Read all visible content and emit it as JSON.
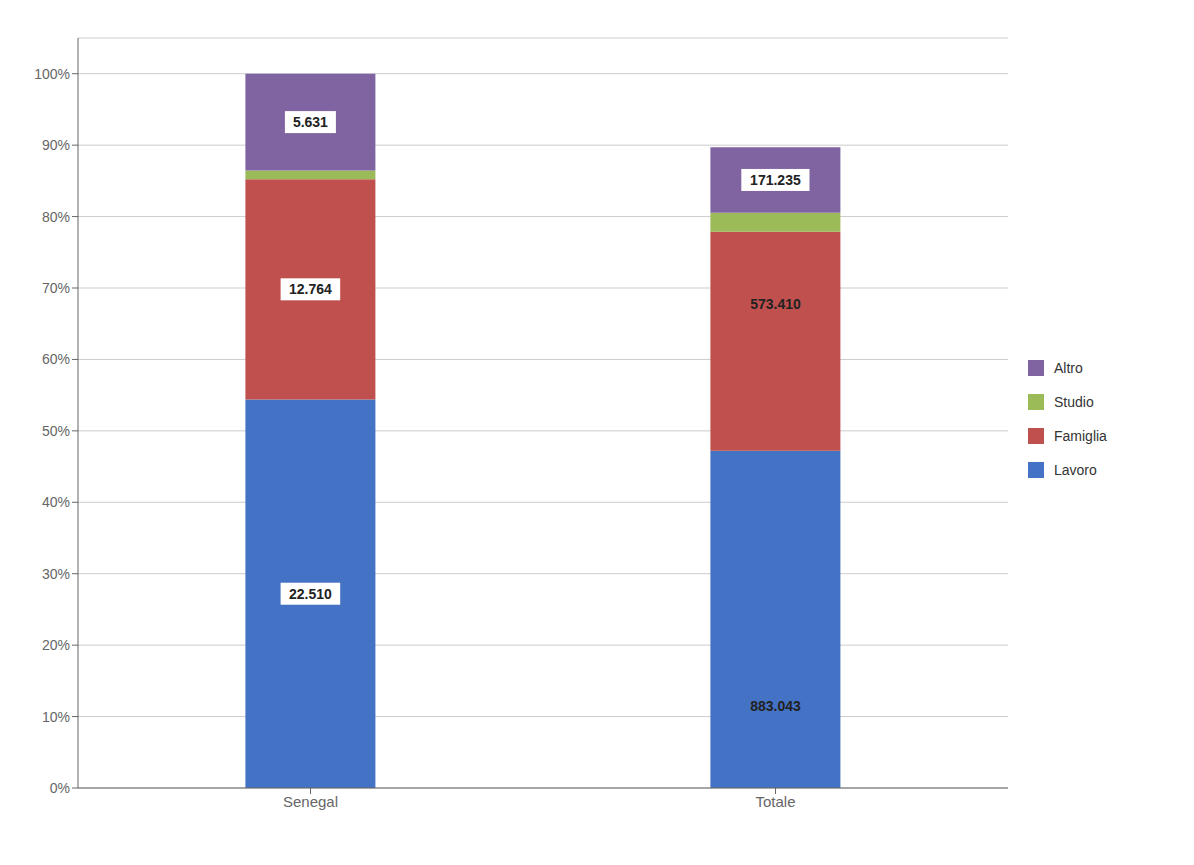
{
  "chart_data": {
    "type": "bar",
    "stacked": true,
    "categories": [
      "Senegal",
      "Totale"
    ],
    "series": [
      {
        "name": "Lavoro",
        "color": "#4472C4",
        "values": [
          0.544,
          0.4720911
        ],
        "labels": [
          "22.510",
          null
        ]
      },
      {
        "name": "Famiglia",
        "color": "#C0504D",
        "values": [
          0.3083,
          0.3065049
        ],
        "labels": [
          "12.764",
          null
        ]
      },
      {
        "name": "Studio",
        "color": "#9BBB59",
        "values": [
          0.0122,
          0.02691
        ]
      },
      {
        "name": "Altro",
        "color": "#8064A2",
        "values": [
          0.1355,
          0.091494
        ],
        "labels": [
          "5.631",
          "171.235"
        ]
      }
    ],
    "annotations": [
      {
        "text": "883.043",
        "x": "Totale",
        "y": 0.115
      },
      {
        "text": "573.410",
        "x": "Totale",
        "y": 0.677
      }
    ],
    "ylim": [
      0,
      1.05
    ],
    "yticks": [
      {
        "value": 0,
        "label": "0%"
      },
      {
        "value": 0.1,
        "label": "10%"
      },
      {
        "value": 0.2,
        "label": "20%"
      },
      {
        "value": 0.3,
        "label": "30%"
      },
      {
        "value": 0.4,
        "label": "40%"
      },
      {
        "value": 0.5,
        "label": "50%"
      },
      {
        "value": 0.6,
        "label": "60%"
      },
      {
        "value": 0.7,
        "label": "70%"
      },
      {
        "value": 0.8,
        "label": "80%"
      },
      {
        "value": 0.9,
        "label": "90%"
      },
      {
        "value": 1,
        "label": "100%"
      }
    ],
    "grid": true,
    "legend": "right"
  }
}
